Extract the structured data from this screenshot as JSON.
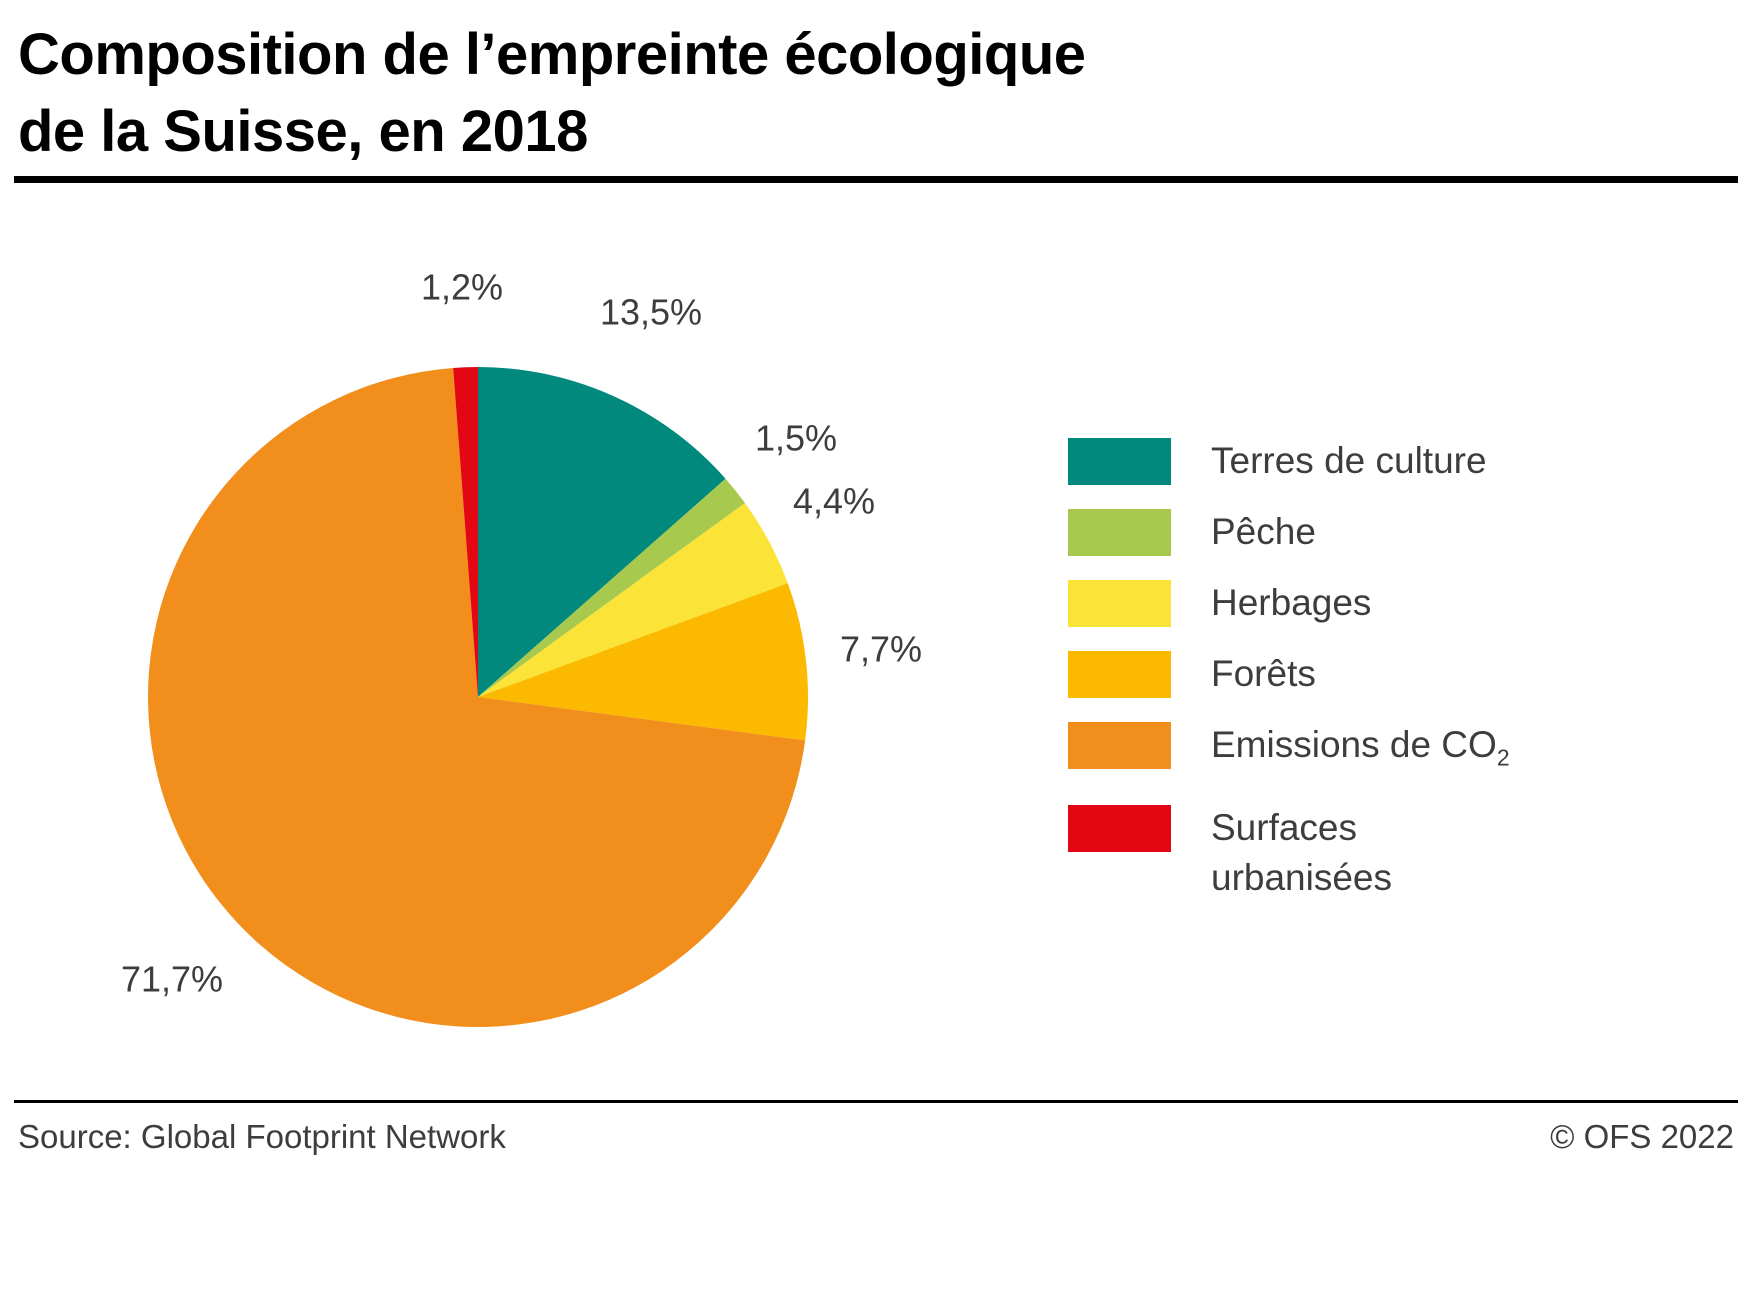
{
  "header": {
    "title_line1": "Composition de l’empreinte écologique",
    "title_line2": "de la Suisse, en 2018"
  },
  "footer": {
    "source": "Source: Global Footprint Network",
    "copyright": "© OFS 2022"
  },
  "colors": {
    "terres_de_culture": "#00897C",
    "peche": "#A6C94E",
    "herbages": "#FBE337",
    "forets": "#FBBA00",
    "emissions_co2": "#F28E1B",
    "surfaces_urbanisees": "#E30613",
    "label_text": "#3D3D3D",
    "rule": "#000000"
  },
  "chart_data": {
    "type": "pie",
    "title": "Composition de l’empreinte écologique de la Suisse, en 2018",
    "unit": "%",
    "direction": "clockwise",
    "start_angle_deg": 0,
    "legend_position": "right",
    "grid": false,
    "slices": [
      {
        "id": "terres-de-culture",
        "label": "Terres de culture",
        "value": 13.5,
        "pct_label": "13,5%",
        "color": "#00897C"
      },
      {
        "id": "peche",
        "label": "Pêche",
        "value": 1.5,
        "pct_label": "1,5%",
        "color": "#A6C94E"
      },
      {
        "id": "herbages",
        "label": "Herbages",
        "value": 4.4,
        "pct_label": "4,4%",
        "color": "#FBE337"
      },
      {
        "id": "forets",
        "label": "Forêts",
        "value": 7.7,
        "pct_label": "7,7%",
        "color": "#FBBA00"
      },
      {
        "id": "emissions-co2",
        "label": "Emissions de CO2",
        "value": 71.7,
        "pct_label": "71,7%",
        "color": "#F28E1B"
      },
      {
        "id": "surfaces-urbanisees",
        "label": "Surfaces urbanisées",
        "value": 1.2,
        "pct_label": "1,2%",
        "color": "#E30613"
      }
    ]
  },
  "legend": {
    "items": [
      {
        "id": "terres-de-culture",
        "lines": [
          "Terres de culture"
        ],
        "color": "#00897C"
      },
      {
        "id": "peche",
        "lines": [
          "Pêche"
        ],
        "color": "#A6C94E"
      },
      {
        "id": "herbages",
        "lines": [
          "Herbages"
        ],
        "color": "#FBE337"
      },
      {
        "id": "forets",
        "lines": [
          "Forêts"
        ],
        "color": "#FBBA00"
      },
      {
        "id": "emissions-co2",
        "lines": [
          "Emissions de CO"
        ],
        "subscript": "2",
        "color": "#F28E1B"
      },
      {
        "id": "surfaces-urbanisees",
        "lines": [
          "Surfaces",
          "urbanisées"
        ],
        "color": "#E30613"
      }
    ]
  }
}
